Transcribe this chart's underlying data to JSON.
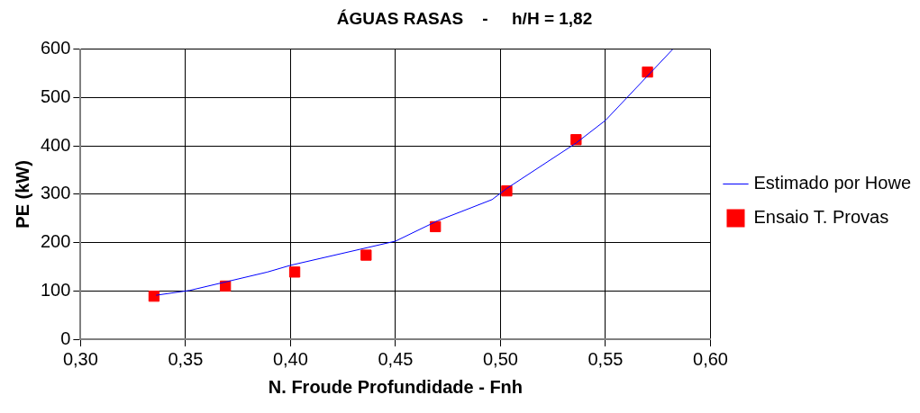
{
  "chart_data": {
    "type": "line",
    "title": "ÁGUAS RASAS    -     h/H = 1,82",
    "xlabel": "N. Froude Profundidade - Fnh",
    "ylabel": "PE (kW)",
    "series": [
      {
        "name": "Estimado por Howe",
        "color": "#0000ff",
        "marker": "none",
        "x": [
          0.336,
          0.352,
          0.389,
          0.4,
          0.45,
          0.47,
          0.496,
          0.503,
          0.536,
          0.55,
          0.582
        ],
        "values": [
          91,
          101,
          139,
          153,
          203,
          245,
          289,
          312,
          406,
          453,
          600
        ]
      },
      {
        "name": "Ensaio T. Provas",
        "type": "scatter",
        "color": "#ff0000",
        "marker": "square",
        "x": [
          0.335,
          0.369,
          0.402,
          0.436,
          0.469,
          0.503,
          0.536,
          0.57
        ],
        "values": [
          89,
          110,
          139,
          174,
          233,
          307,
          413,
          553
        ]
      }
    ],
    "xlim": [
      0.3,
      0.6
    ],
    "xticks": [
      {
        "value": 0.3,
        "label": "0,30"
      },
      {
        "value": 0.35,
        "label": "0,35"
      },
      {
        "value": 0.4,
        "label": "0,40"
      },
      {
        "value": 0.45,
        "label": "0,45"
      },
      {
        "value": 0.5,
        "label": "0,50"
      },
      {
        "value": 0.55,
        "label": "0,55"
      },
      {
        "value": 0.6,
        "label": "0,60"
      }
    ],
    "ylim": [
      0,
      600
    ],
    "yticks": [
      0,
      100,
      200,
      300,
      400,
      500,
      600
    ],
    "grid": true,
    "legend": "right"
  }
}
